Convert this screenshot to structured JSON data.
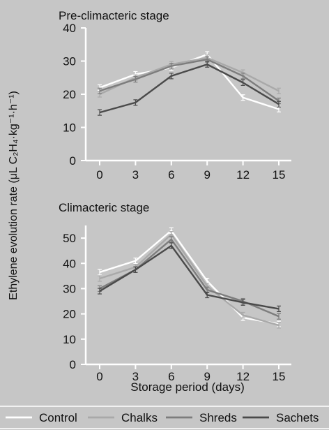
{
  "figure": {
    "ylabel": "Ethylene evolution rate (μL C₂H₄·kg⁻¹·h⁻¹)",
    "xlabel": "Storage period (days)",
    "legend": [
      "Control",
      "Chalks",
      "Shreds",
      "Sachets"
    ]
  },
  "colors": {
    "background": "#c6c6c6",
    "axis": "#ffffff",
    "Control": "#ffffff",
    "Chalks": "#a9a9a9",
    "Shreds": "#7d7d7d",
    "Sachets": "#4a4a4a"
  },
  "chart_data": [
    {
      "type": "line",
      "title": "Pre-climacteric stage",
      "x": [
        0,
        3,
        6,
        9,
        12,
        15
      ],
      "xticks": [
        "0",
        "3",
        "6",
        "9",
        "12",
        "15"
      ],
      "yticks": [
        "0",
        "10",
        "20",
        "30",
        "40"
      ],
      "ylim": [
        0,
        40
      ],
      "series": [
        {
          "name": "Control",
          "values": [
            22,
            26,
            28,
            32,
            19,
            15.5
          ]
        },
        {
          "name": "Chalks",
          "values": [
            20,
            25,
            29,
            31,
            26.5,
            21
          ]
        },
        {
          "name": "Shreds",
          "values": [
            21,
            24.5,
            28.5,
            30.5,
            25.5,
            18
          ]
        },
        {
          "name": "Sachets",
          "values": [
            14.5,
            17.5,
            25.5,
            29,
            23.5,
            17
          ]
        }
      ]
    },
    {
      "type": "line",
      "title": "Climacteric stage",
      "x": [
        0,
        3,
        6,
        9,
        12,
        15
      ],
      "xticks": [
        "0",
        "3",
        "6",
        "9",
        "12",
        "15"
      ],
      "yticks": [
        "0",
        "10",
        "20",
        "30",
        "40",
        "50"
      ],
      "ylim": [
        0,
        55
      ],
      "series": [
        {
          "name": "Control",
          "values": [
            36.5,
            41,
            53,
            33,
            18.5,
            16
          ]
        },
        {
          "name": "Chalks",
          "values": [
            34,
            38.5,
            51.5,
            31,
            19.5,
            15.5
          ]
        },
        {
          "name": "Shreds",
          "values": [
            30,
            37.5,
            49.5,
            29.5,
            25,
            19
          ]
        },
        {
          "name": "Sachets",
          "values": [
            29,
            37.5,
            47,
            27.5,
            24.5,
            22
          ]
        }
      ]
    }
  ]
}
